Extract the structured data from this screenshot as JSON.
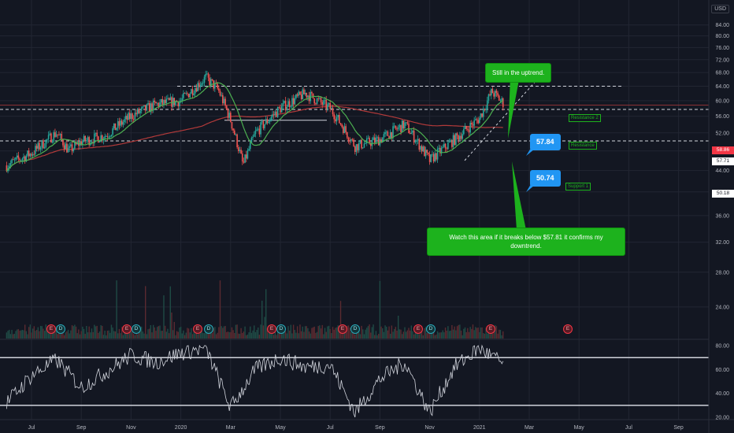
{
  "currency": "USD",
  "colors": {
    "background": "#131722",
    "grid": "#222632",
    "candle_up": "#26a69a",
    "candle_down": "#ef5350",
    "ma_fast": "#4caf50",
    "ma_slow": "#b23a3a",
    "rsi": "#d1d4dc",
    "annotation_green": "#1db21d",
    "annotation_blue": "#2196f3",
    "price_badge": "#f23645"
  },
  "price_badges": {
    "last": "58.86",
    "level_a": "57.71",
    "level_b": "50.18"
  },
  "annotations": {
    "uptrend": "Still in the uptrend.",
    "downtrend": "Watch this area if it breaks below $57.81 it confirms my downtrend.",
    "target_upper": "57.84",
    "target_lower": "50.74",
    "resistance2": "Resistance 2",
    "resistance": "Resistance",
    "support1": "Support 1"
  },
  "events": [
    {
      "type": "E"
    },
    {
      "type": "D"
    },
    {
      "type": "E"
    },
    {
      "type": "D"
    },
    {
      "type": "E"
    },
    {
      "type": "D"
    },
    {
      "type": "E"
    },
    {
      "type": "D"
    },
    {
      "type": "E"
    },
    {
      "type": "D"
    },
    {
      "type": "E"
    },
    {
      "type": "D"
    },
    {
      "type": "E"
    },
    {
      "type": "E"
    }
  ],
  "chart_data": [
    {
      "type": "candlestick",
      "title": "",
      "ylabel": "",
      "y_scale": "log",
      "price_axis_ticks": [
        "84.00",
        "80.00",
        "76.00",
        "72.00",
        "68.00",
        "64.00",
        "60.00",
        "56.00",
        "52.00",
        "48.00",
        "44.00",
        "40.00",
        "36.00",
        "32.00",
        "28.00",
        "24.00"
      ],
      "time_axis_ticks": [
        "Jul",
        "Sep",
        "Nov",
        "2020",
        "Mar",
        "May",
        "Jul",
        "Sep",
        "Nov",
        "2021",
        "Mar",
        "May",
        "Jul",
        "Sep"
      ],
      "ylim": [
        21,
        90
      ],
      "key_levels": {
        "resistance_2": 64.0,
        "resistance": 58.86,
        "dashed_level": 57.71,
        "support_1": 50.18
      },
      "close_path": [
        [
          "Jun 2019",
          45.0
        ],
        [
          "Jul 2019",
          47.5
        ],
        [
          "Aug 2019",
          52.0
        ],
        [
          "Aug 2019",
          48.0
        ],
        [
          "Sep 2019",
          50.0
        ],
        [
          "Oct 2019",
          51.5
        ],
        [
          "Nov 2019",
          56.0
        ],
        [
          "Dec 2019",
          59.0
        ],
        [
          "Jan 2020",
          60.0
        ],
        [
          "Feb 2020",
          66.5
        ],
        [
          "Feb 2020",
          63.0
        ],
        [
          "Mar 2020",
          55.0
        ],
        [
          "Mar 2020",
          45.0
        ],
        [
          "Apr 2020",
          52.0
        ],
        [
          "May 2020",
          58.0
        ],
        [
          "Jun 2020",
          62.0
        ],
        [
          "Jul 2020",
          58.0
        ],
        [
          "Aug 2020",
          49.0
        ],
        [
          "Sep 2020",
          50.5
        ],
        [
          "Oct 2020",
          54.0
        ],
        [
          "Nov 2020",
          46.0
        ],
        [
          "Dec 2020",
          50.5
        ],
        [
          "Jan 2021",
          55.5
        ],
        [
          "Jan 2021",
          62.5
        ],
        [
          "Feb 2021",
          59.0
        ]
      ]
    },
    {
      "type": "line",
      "title": "",
      "ylabel": "",
      "ylim": [
        18,
        82
      ],
      "axis_ticks": [
        "80.00",
        "60.00",
        "40.00",
        "20.00"
      ],
      "reference_lines": [
        70,
        30
      ],
      "series": [
        {
          "name": "",
          "x": [
            "Jun 2019",
            "Jul 2019",
            "Aug 2019",
            "Sep 2019",
            "Oct 2019",
            "Nov 2019",
            "Dec 2019",
            "Jan 2020",
            "Feb 2020",
            "Mar 2020",
            "Apr 2020",
            "May 2020",
            "Jun 2020",
            "Jul 2020",
            "Aug 2020",
            "Sep 2020",
            "Oct 2020",
            "Nov 2020",
            "Dec 2020",
            "Jan 2021",
            "Feb 2021"
          ],
          "values": [
            32,
            55,
            68,
            45,
            58,
            72,
            66,
            74,
            78,
            28,
            60,
            70,
            62,
            64,
            24,
            52,
            66,
            24,
            62,
            78,
            64
          ]
        }
      ]
    }
  ]
}
